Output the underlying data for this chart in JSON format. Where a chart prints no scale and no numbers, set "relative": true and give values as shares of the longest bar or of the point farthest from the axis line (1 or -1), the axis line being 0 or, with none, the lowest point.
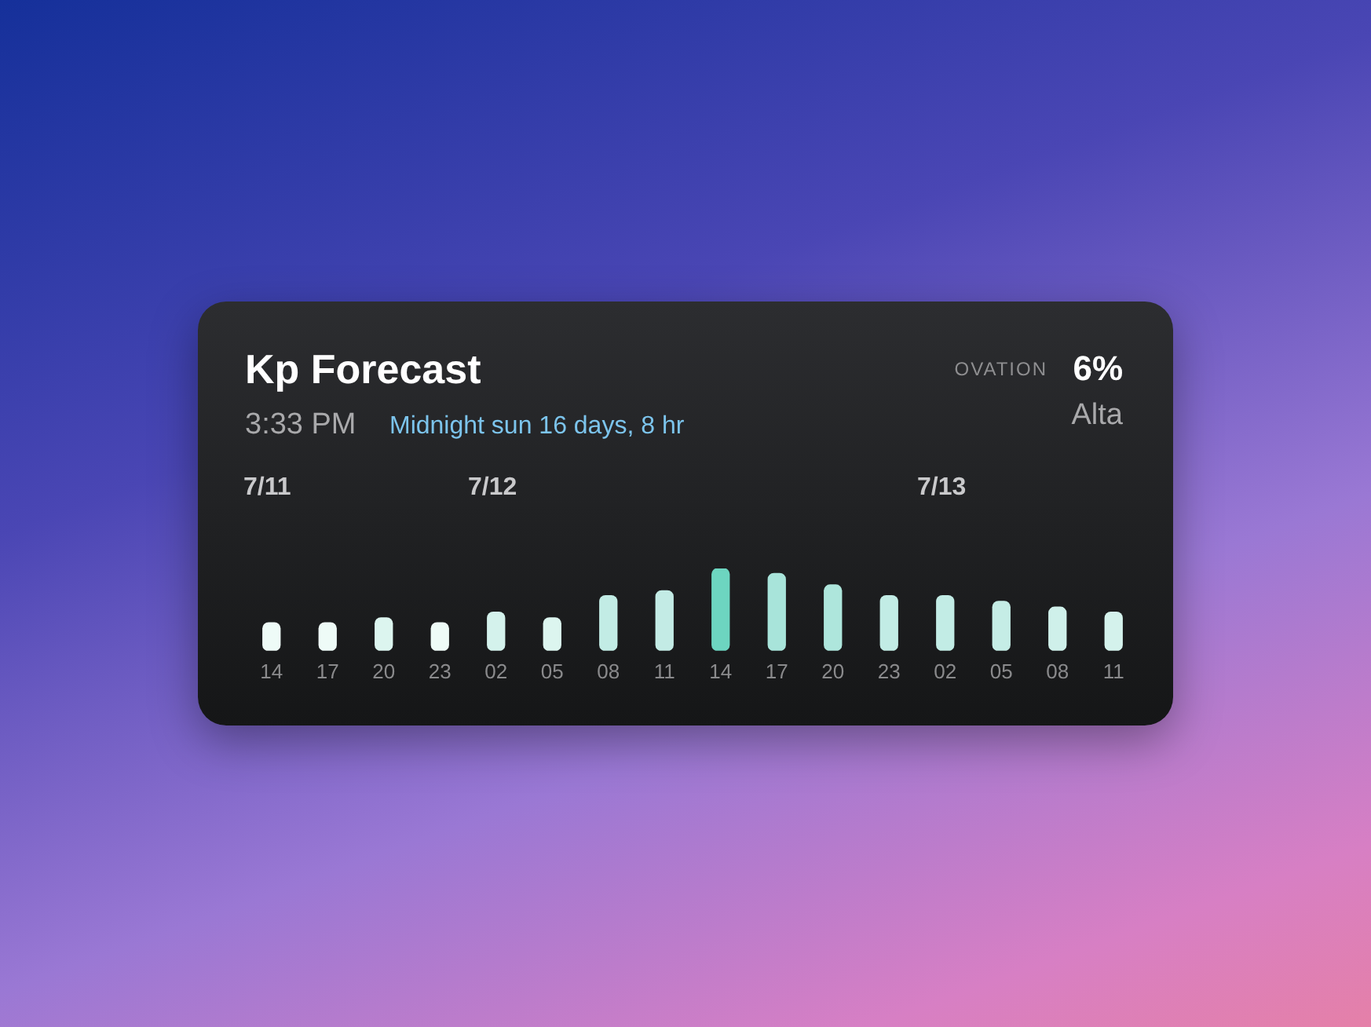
{
  "chart_data": {
    "type": "bar",
    "title": "Kp Forecast",
    "subtitle": "3:33 PM",
    "annotations": [
      "Midnight sun 16 days, 8 hr",
      "OVATION",
      "6%",
      "Alta",
      "7/11",
      "7/12",
      "7/13"
    ],
    "categories": [
      "14",
      "17",
      "20",
      "23",
      "02",
      "05",
      "08",
      "11",
      "14",
      "17",
      "20",
      "23",
      "02",
      "05",
      "08",
      "11"
    ],
    "values": [
      0.34,
      0.34,
      0.4,
      0.34,
      0.47,
      0.4,
      0.67,
      0.73,
      1,
      0.94,
      0.8,
      0.67,
      0.67,
      0.6,
      0.53,
      0.47
    ],
    "colors": [
      "#eefbf7",
      "#eefbf7",
      "#dcf5ef",
      "#eefbf7",
      "#d4f2ec",
      "#dcf5ef",
      "#c2ece5",
      "#c3ebe5",
      "#6dd5c0",
      "#a8e4da",
      "#aee6dc",
      "#c2ece5",
      "#c2ece5",
      "#c5ede6",
      "#cff0ea",
      "#d4f2ec"
    ],
    "relative": true,
    "legend": false
  }
}
